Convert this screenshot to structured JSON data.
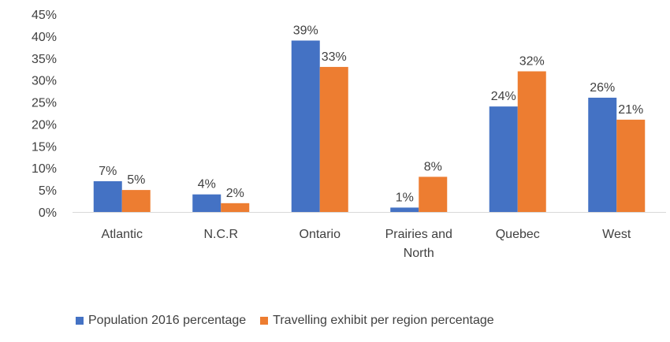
{
  "chart_data": {
    "type": "bar",
    "categories": [
      "Atlantic",
      "N.C.R",
      "Ontario",
      "Prairies and North",
      "Quebec",
      "West"
    ],
    "category_lines": [
      [
        "Atlantic"
      ],
      [
        "N.C.R"
      ],
      [
        "Ontario"
      ],
      [
        "Prairies and",
        "North"
      ],
      [
        "Quebec"
      ],
      [
        "West"
      ]
    ],
    "series": [
      {
        "name": "Population 2016 percentage",
        "values": [
          7,
          4,
          39,
          1,
          24,
          26
        ],
        "labels": [
          "7%",
          "4%",
          "39%",
          "1%",
          "24%",
          "26%"
        ],
        "color": "#4472C4"
      },
      {
        "name": "Travelling exhibit per region percentage",
        "values": [
          5,
          2,
          33,
          8,
          32,
          21
        ],
        "labels": [
          "5%",
          "2%",
          "33%",
          "8%",
          "32%",
          "21%"
        ],
        "color": "#ED7D31"
      }
    ],
    "ylim": [
      0,
      45
    ],
    "yticks": [
      0,
      5,
      10,
      15,
      20,
      25,
      30,
      35,
      40,
      45
    ],
    "ytick_labels": [
      "0%",
      "5%",
      "10%",
      "15%",
      "20%",
      "25%",
      "30%",
      "35%",
      "40%",
      "45%"
    ],
    "title": "",
    "xlabel": "",
    "ylabel": "",
    "grid": false,
    "legend_position": "bottom"
  }
}
